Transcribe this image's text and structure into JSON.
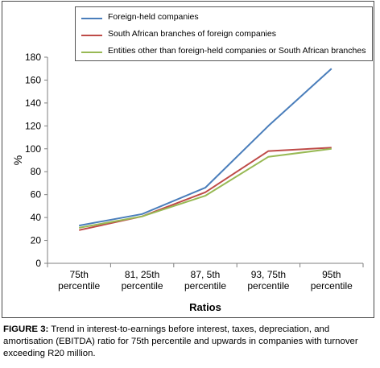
{
  "chart_data": {
    "type": "line",
    "categories": [
      [
        "75th",
        "percentile"
      ],
      [
        "81, 25th",
        "percentile"
      ],
      [
        "87, 5th",
        "percentile"
      ],
      [
        "93, 75th",
        "percentile"
      ],
      [
        "95th",
        "percentile"
      ]
    ],
    "series": [
      {
        "name": "Foreign-held companies",
        "color": "#4a7ebb",
        "values": [
          33,
          43,
          66,
          120,
          170
        ]
      },
      {
        "name": "South African branches of foreign companies",
        "color": "#be4b48",
        "values": [
          29,
          41,
          62,
          98,
          101
        ]
      },
      {
        "name": "Entities other than foreign-held companies or South African branches",
        "color": "#98b954",
        "values": [
          31,
          41,
          59,
          93,
          100
        ]
      }
    ],
    "xlabel": "Ratios",
    "ylabel": "%",
    "ylim": [
      0,
      180
    ],
    "yticks": [
      0,
      20,
      40,
      60,
      80,
      100,
      120,
      140,
      160,
      180
    ],
    "legend_position": "top",
    "grid": false
  },
  "caption": {
    "label": "FIGURE 3:",
    "text": " Trend in interest-to-earnings before interest, taxes, depreciation, and amortisation (EBITDA) ratio for 75th percentile and upwards in companies with turnover exceeding R20 million."
  }
}
